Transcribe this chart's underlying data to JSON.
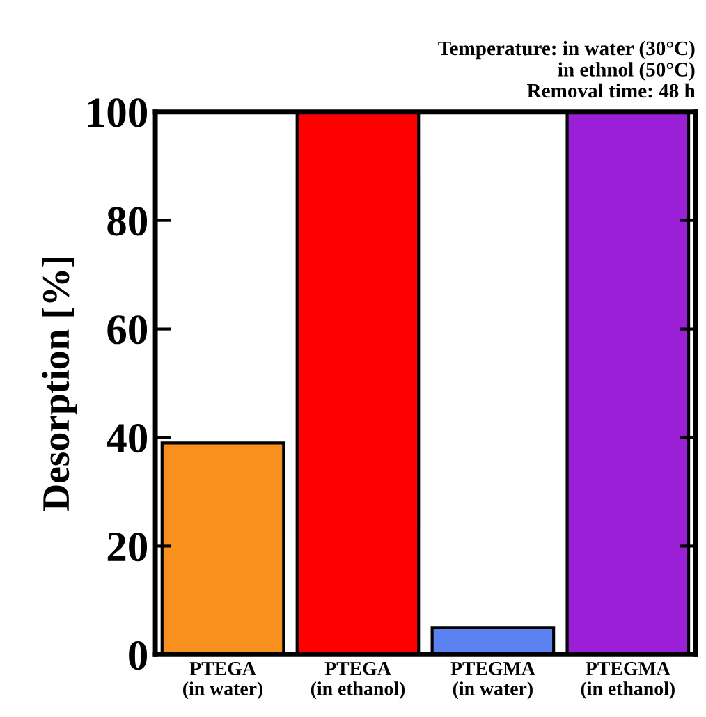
{
  "chart_data": {
    "type": "bar",
    "ylabel": "Desorption [%]",
    "categories": [
      "PTEGA\n(in water)",
      "PTEGA\n(in ethanol)",
      "PTEGMA\n(in water)",
      "PTEGMA\n(in ethanol)"
    ],
    "values": [
      39,
      100,
      5,
      100
    ],
    "colors": [
      "#f7901e",
      "#ff0000",
      "#5b82f0",
      "#9b1fd6"
    ],
    "ylim": [
      0,
      100
    ],
    "yticks": [
      0,
      20,
      40,
      60,
      80,
      100
    ],
    "grid": false,
    "annotations": [
      "Temperature: in water (30°C)\nin ethnol (50°C)\nRemoval time: 48 h"
    ]
  }
}
